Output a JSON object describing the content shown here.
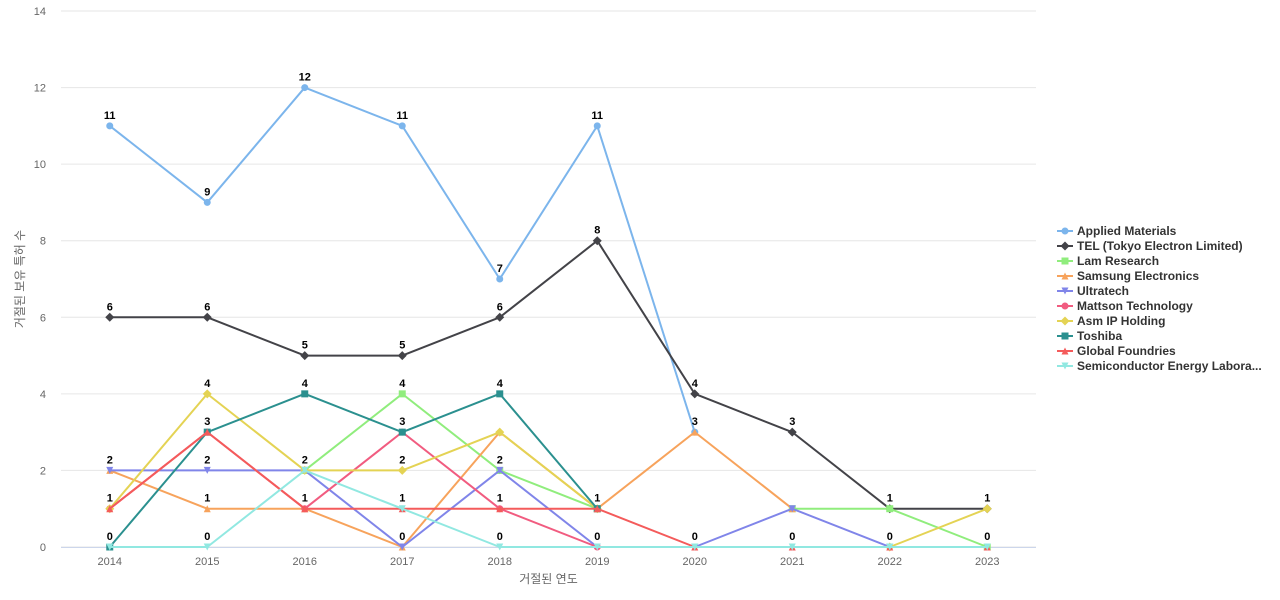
{
  "chart_data": {
    "type": "line",
    "xlabel": "거절된 연도",
    "ylabel": "거절된 보유 특허 수",
    "x": [
      "2014",
      "2015",
      "2016",
      "2017",
      "2018",
      "2019",
      "2020",
      "2021",
      "2022",
      "2023"
    ],
    "ylim": [
      0,
      14
    ],
    "yticks": [
      "0",
      "2",
      "4",
      "6",
      "8",
      "10",
      "12",
      "14"
    ],
    "grid": true,
    "legend_position": "right",
    "series": [
      {
        "name": "Applied Materials",
        "color": "#7cb5ec",
        "marker": "circle",
        "values": [
          11,
          9,
          12,
          11,
          7,
          11,
          3,
          null,
          null,
          null
        ],
        "labels": [
          "11",
          "9",
          "12",
          "11",
          "7",
          "11",
          "3",
          "",
          "",
          ""
        ]
      },
      {
        "name": "TEL (Tokyo Electron Limited)",
        "color": "#434348",
        "marker": "diamond",
        "values": [
          6,
          6,
          5,
          5,
          6,
          8,
          4,
          3,
          1,
          1
        ],
        "labels": [
          "6",
          "6",
          "5",
          "5",
          "6",
          "8",
          "4",
          "3",
          "1",
          "1"
        ]
      },
      {
        "name": "Lam Research",
        "color": "#90ed7d",
        "marker": "square",
        "values": [
          null,
          null,
          2,
          4,
          2,
          1,
          null,
          1,
          1,
          0
        ],
        "labels": [
          "",
          "",
          "",
          "4",
          "",
          "",
          "",
          "",
          "",
          ""
        ]
      },
      {
        "name": "Samsung Electronics",
        "color": "#f7a35c",
        "marker": "triangle",
        "values": [
          2,
          1,
          1,
          0,
          3,
          1,
          3,
          1,
          null,
          null
        ],
        "labels": [
          "",
          "1",
          "",
          "0",
          "",
          "",
          "",
          "",
          "",
          ""
        ]
      },
      {
        "name": "Ultratech",
        "color": "#8085e9",
        "marker": "triangle-down",
        "values": [
          2,
          2,
          2,
          0,
          2,
          0,
          0,
          1,
          0,
          null
        ],
        "labels": [
          "2",
          "2",
          "2",
          "",
          "2",
          "",
          "",
          "",
          "",
          ""
        ]
      },
      {
        "name": "Mattson Technology",
        "color": "#f15c80",
        "marker": "circle",
        "values": [
          1,
          3,
          1,
          3,
          1,
          0,
          null,
          null,
          null,
          null
        ],
        "labels": [
          "",
          "",
          "1",
          "3",
          "",
          "",
          "",
          "",
          "",
          ""
        ]
      },
      {
        "name": "Asm IP Holding",
        "color": "#e4d354",
        "marker": "diamond",
        "values": [
          1,
          4,
          2,
          2,
          3,
          1,
          null,
          null,
          0,
          1
        ],
        "labels": [
          "",
          "4",
          "",
          "2",
          "",
          "",
          "",
          "",
          "",
          ""
        ]
      },
      {
        "name": "Toshiba",
        "color": "#2b908f",
        "marker": "square",
        "values": [
          0,
          3,
          4,
          3,
          4,
          1,
          null,
          null,
          null,
          null
        ],
        "labels": [
          "",
          "3",
          "4",
          "",
          "4",
          "1",
          "",
          "",
          "",
          ""
        ]
      },
      {
        "name": "Global Foundries",
        "color": "#f45b5b",
        "marker": "triangle",
        "values": [
          1,
          3,
          1,
          1,
          1,
          1,
          0,
          0,
          0,
          0
        ],
        "labels": [
          "1",
          "",
          "",
          "1",
          "1",
          "",
          "",
          "",
          "",
          ""
        ]
      },
      {
        "name": "Semiconductor Energy Labora...",
        "color": "#91e8e1",
        "marker": "triangle-down",
        "values": [
          0,
          0,
          2,
          1,
          0,
          0,
          0,
          0,
          0,
          0
        ],
        "labels": [
          "0",
          "0",
          "",
          "",
          "0",
          "0",
          "0",
          "0",
          "0",
          "0"
        ]
      }
    ]
  }
}
